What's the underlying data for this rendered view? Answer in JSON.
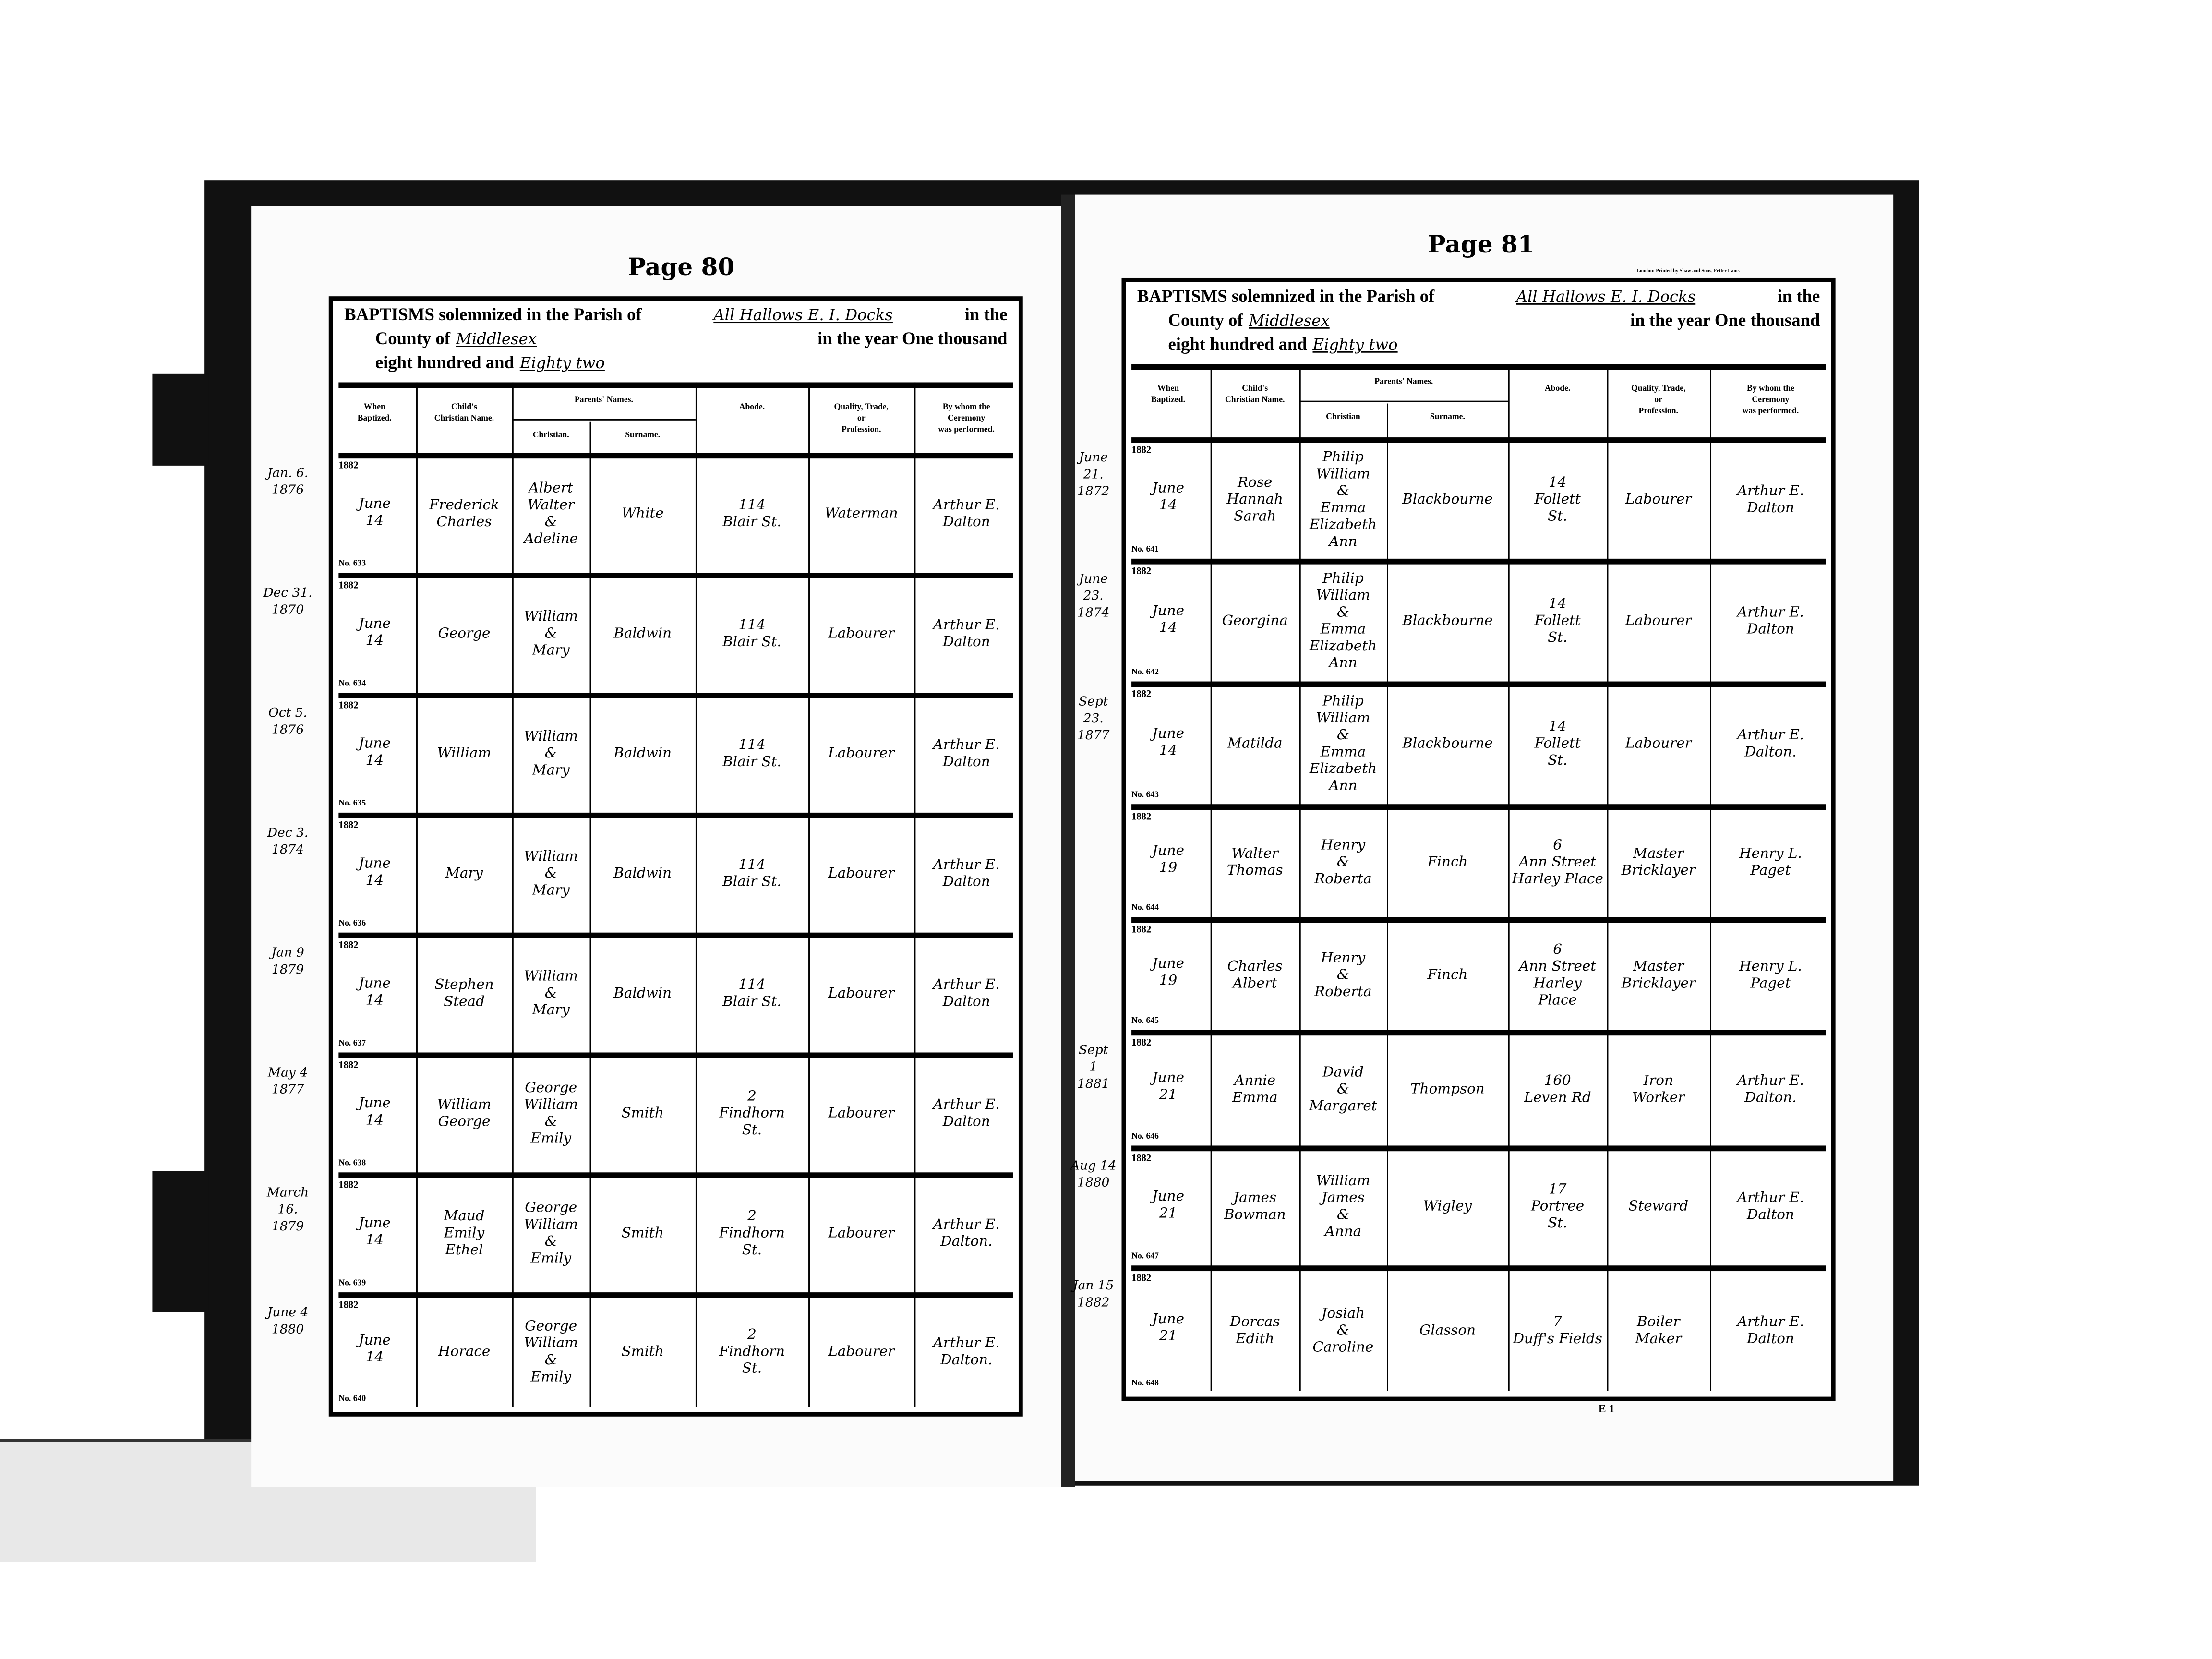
{
  "left_page": {
    "page_label": "Page 80",
    "header": {
      "line1_prefix": "BAPTISMS solemnized in the Parish of",
      "parish": "All Hallows E. I. Docks",
      "line1_suffix": "in the",
      "county_prefix": "County of",
      "county": "Middlesex",
      "county_suffix": "in the year One thousand",
      "year_prefix": "eight hundred and",
      "year": "Eighty two"
    },
    "columns": {
      "when": "When\nBaptized.",
      "child": "Child's\nChristian Name.",
      "parents": "Parents' Names.",
      "christian": "Christian.",
      "surname": "Surname.",
      "abode": "Abode.",
      "quality": "Quality, Trade,\nor\nProfession.",
      "by_whom": "By whom the\nCeremony\nwas performed."
    },
    "entries": [
      {
        "margin": "Jan. 6.\n1876",
        "year": "1882",
        "date": "June\n14",
        "no": "No. 633",
        "child": "Frederick\nCharles",
        "christian": "Albert\nWalter\n&\nAdeline",
        "surname": "White",
        "abode": "114\nBlair St.",
        "quality": "Waterman",
        "by": "Arthur E.\nDalton"
      },
      {
        "margin": "Dec 31.\n1870",
        "year": "1882",
        "date": "June\n14",
        "no": "No. 634",
        "child": "George",
        "christian": "William\n&\nMary",
        "surname": "Baldwin",
        "abode": "114\nBlair St.",
        "quality": "Labourer",
        "by": "Arthur E.\nDalton"
      },
      {
        "margin": "Oct 5.\n1876",
        "year": "1882",
        "date": "June\n14",
        "no": "No. 635",
        "child": "William",
        "christian": "William\n&\nMary",
        "surname": "Baldwin",
        "abode": "114\nBlair St.",
        "quality": "Labourer",
        "by": "Arthur E.\nDalton"
      },
      {
        "margin": "Dec 3.\n1874",
        "year": "1882",
        "date": "June\n14",
        "no": "No. 636",
        "child": "Mary",
        "christian": "William\n&\nMary",
        "surname": "Baldwin",
        "abode": "114\nBlair St.",
        "quality": "Labourer",
        "by": "Arthur E.\nDalton"
      },
      {
        "margin": "Jan 9\n1879",
        "year": "1882",
        "date": "June\n14",
        "no": "No. 637",
        "child": "Stephen\nStead",
        "christian": "William\n&\nMary",
        "surname": "Baldwin",
        "abode": "114\nBlair St.",
        "quality": "Labourer",
        "by": "Arthur E.\nDalton"
      },
      {
        "margin": "May 4\n1877",
        "year": "1882",
        "date": "June\n14",
        "no": "No. 638",
        "child": "William\nGeorge",
        "christian": "George\nWilliam\n&\nEmily",
        "surname": "Smith",
        "abode": "2\nFindhorn\nSt.",
        "quality": "Labourer",
        "by": "Arthur E.\nDalton"
      },
      {
        "margin": "March\n16.\n1879",
        "year": "1882",
        "date": "June\n14",
        "no": "No. 639",
        "child": "Maud\nEmily\nEthel",
        "christian": "George\nWilliam\n&\nEmily",
        "surname": "Smith",
        "abode": "2\nFindhorn\nSt.",
        "quality": "Labourer",
        "by": "Arthur E.\nDalton."
      },
      {
        "margin": "June 4\n1880",
        "year": "1882",
        "date": "June\n14",
        "no": "No. 640",
        "child": "Horace",
        "christian": "George\nWilliam\n&\nEmily",
        "surname": "Smith",
        "abode": "2\nFindhorn\nSt.",
        "quality": "Labourer",
        "by": "Arthur E.\nDalton."
      }
    ]
  },
  "right_page": {
    "page_label": "Page 81",
    "printer": "London: Printed by Shaw and Sons, Fetter Lane.",
    "footer_mark": "E 1",
    "header": {
      "line1_prefix": "BAPTISMS solemnized in the Parish of",
      "parish": "All Hallows E. I. Docks",
      "line1_suffix": "in the",
      "county_prefix": "County of",
      "county": "Middlesex",
      "county_suffix": "in the year One thousand",
      "year_prefix": "eight hundred and",
      "year": "Eighty two"
    },
    "columns": {
      "when": "When\nBaptized.",
      "child": "Child's\nChristian Name.",
      "parents": "Parents' Names.",
      "christian": "Christian",
      "surname": "Surname.",
      "abode": "Abode.",
      "quality": "Quality, Trade,\nor\nProfession.",
      "by_whom": "By whom the\nCeremony\nwas performed."
    },
    "entries": [
      {
        "margin": "June\n21.\n1872",
        "year": "1882",
        "date": "June\n14",
        "no": "No. 641",
        "child": "Rose\nHannah\nSarah",
        "christian": "Philip\nWilliam\n&\nEmma\nElizabeth\nAnn",
        "surname": "Blackbourne",
        "abode": "14\nFollett\nSt.",
        "quality": "Labourer",
        "by": "Arthur E.\nDalton"
      },
      {
        "margin": "June\n23.\n1874",
        "year": "1882",
        "date": "June\n14",
        "no": "No. 642",
        "child": "Georgina",
        "christian": "Philip\nWilliam\n&\nEmma\nElizabeth\nAnn",
        "surname": "Blackbourne",
        "abode": "14\nFollett\nSt.",
        "quality": "Labourer",
        "by": "Arthur E.\nDalton"
      },
      {
        "margin": "Sept\n23.\n1877",
        "year": "1882",
        "date": "June\n14",
        "no": "No. 643",
        "child": "Matilda",
        "christian": "Philip\nWilliam\n&\nEmma\nElizabeth\nAnn",
        "surname": "Blackbourne",
        "abode": "14\nFollett\nSt.",
        "quality": "Labourer",
        "by": "Arthur E.\nDalton."
      },
      {
        "margin": "",
        "year": "1882",
        "date": "June\n19",
        "no": "No. 644",
        "child": "Walter\nThomas",
        "christian": "Henry\n&\nRoberta",
        "surname": "Finch",
        "abode": "6\nAnn Street\nHarley Place",
        "quality": "Master\nBricklayer",
        "by": "Henry L.\nPaget"
      },
      {
        "margin": "",
        "year": "1882",
        "date": "June\n19",
        "no": "No. 645",
        "child": "Charles\nAlbert",
        "christian": "Henry\n&\nRoberta",
        "surname": "Finch",
        "abode": "6\nAnn Street\nHarley\nPlace",
        "quality": "Master\nBricklayer",
        "by": "Henry L.\nPaget"
      },
      {
        "margin": "Sept\n1\n1881",
        "year": "1882",
        "date": "June\n21",
        "no": "No. 646",
        "child": "Annie\nEmma",
        "christian": "David\n&\nMargaret",
        "surname": "Thompson",
        "abode": "160\nLeven Rd",
        "quality": "Iron\nWorker",
        "by": "Arthur E.\nDalton."
      },
      {
        "margin": "Aug 14\n1880",
        "year": "1882",
        "date": "June\n21",
        "no": "No. 647",
        "child": "James\nBowman",
        "christian": "William\nJames\n&\nAnna",
        "surname": "Wigley",
        "abode": "17\nPortree\nSt.",
        "quality": "Steward",
        "by": "Arthur E.\nDalton"
      },
      {
        "margin": "Jan 15\n1882",
        "year": "1882",
        "date": "June\n21",
        "no": "No. 648",
        "child": "Dorcas\nEdith",
        "christian": "Josiah\n&\nCaroline",
        "surname": "Glasson",
        "abode": "7\nDuff's Fields",
        "quality": "Boiler\nMaker",
        "by": "Arthur E.\nDalton"
      }
    ]
  }
}
